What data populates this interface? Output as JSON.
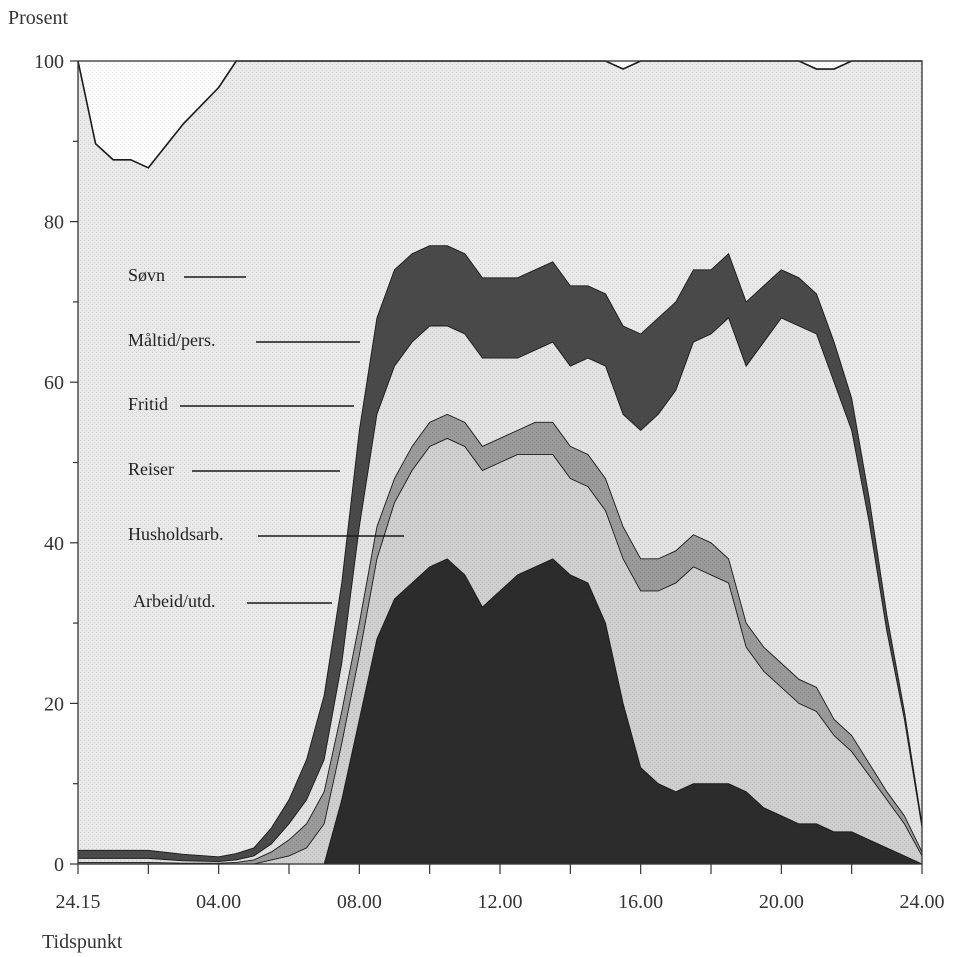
{
  "chart_data": {
    "type": "area",
    "ylabel": "Prosent",
    "xlabel": "Tidspunkt",
    "ylim": [
      0,
      100
    ],
    "y_ticks": [
      0,
      20,
      40,
      60,
      80,
      100
    ],
    "x_ticks": [
      {
        "h": 0,
        "label": "24.15"
      },
      {
        "h": 4,
        "label": "04.00"
      },
      {
        "h": 8,
        "label": "08.00"
      },
      {
        "h": 12,
        "label": "12.00"
      },
      {
        "h": 16,
        "label": "16.00"
      },
      {
        "h": 20,
        "label": "20.00"
      },
      {
        "h": 24,
        "label": "24.00"
      }
    ],
    "grid": false,
    "legend": "inside-left",
    "x_hours": [
      0,
      0.5,
      1,
      1.5,
      2,
      3,
      4,
      4.5,
      5,
      5.5,
      6,
      6.5,
      7,
      7.5,
      8,
      8.5,
      9,
      9.5,
      10,
      10.5,
      11,
      11.5,
      12,
      12.5,
      13,
      13.5,
      14,
      14.5,
      15,
      15.5,
      16,
      16.5,
      17,
      17.5,
      18,
      18.5,
      19,
      19.5,
      20,
      20.5,
      21,
      21.5,
      22,
      22.5,
      23,
      23.5,
      24
    ],
    "series": [
      {
        "name": "Arbeid/utd.",
        "color": "#2c2c2c",
        "values": [
          0,
          0,
          0,
          0,
          0,
          0,
          0,
          0,
          0,
          0,
          0,
          0,
          0,
          8,
          18,
          28,
          33,
          35,
          37,
          38,
          36,
          32,
          34,
          36,
          37,
          38,
          36,
          35,
          30,
          20,
          12,
          10,
          9,
          10,
          10,
          10,
          9,
          7,
          6,
          5,
          5,
          4,
          4,
          3,
          2,
          1,
          0
        ]
      },
      {
        "name": "Husholdsarb.",
        "color": "#cfcfcf",
        "values": [
          0,
          0,
          0,
          0,
          0,
          0,
          0,
          0,
          0,
          0.5,
          1,
          2,
          5,
          7,
          8,
          10,
          12,
          14,
          15,
          15,
          16,
          17,
          16,
          15,
          14,
          13,
          12,
          12,
          14,
          18,
          22,
          24,
          26,
          27,
          26,
          25,
          18,
          17,
          16,
          15,
          14,
          12,
          10,
          8,
          6,
          4,
          1
        ]
      },
      {
        "name": "Reiser",
        "color": "#9a9a9a",
        "values": [
          0.2,
          0.2,
          0.2,
          0.2,
          0.2,
          0.1,
          0.1,
          0.2,
          0.5,
          1,
          2,
          3,
          4,
          4,
          4,
          4,
          3,
          3,
          3,
          3,
          3,
          3,
          3,
          3,
          4,
          4,
          4,
          4,
          4,
          4,
          4,
          4,
          4,
          4,
          4,
          3,
          3,
          3,
          3,
          3,
          3,
          2,
          2,
          1.5,
          1,
          1,
          0.5
        ]
      },
      {
        "name": "Fritid",
        "color": "#e2e2e2",
        "values": [
          0.5,
          0.5,
          0.5,
          0.5,
          0.5,
          0.3,
          0.2,
          0.3,
          0.5,
          1,
          2,
          3,
          4,
          6,
          12,
          14,
          14,
          13,
          12,
          11,
          11,
          11,
          10,
          9,
          9,
          10,
          10,
          12,
          14,
          14,
          16,
          18,
          20,
          24,
          26,
          30,
          32,
          38,
          43,
          44,
          44,
          42,
          38,
          30,
          20,
          12,
          3
        ]
      },
      {
        "name": "Måltid/pers.",
        "color": "#4a4a4a",
        "values": [
          1,
          1,
          1,
          1,
          1,
          0.8,
          0.6,
          0.8,
          1,
          2,
          3,
          5,
          8,
          10,
          12,
          12,
          12,
          11,
          10,
          10,
          10,
          10,
          10,
          10,
          10,
          10,
          10,
          9,
          9,
          11,
          12,
          12,
          11,
          9,
          8,
          8,
          8,
          7,
          6,
          6,
          5,
          5,
          4,
          3,
          2,
          1,
          0.5
        ]
      },
      {
        "name": "Søvn",
        "color": "#e9e9e9",
        "values": [
          98.3,
          88,
          86,
          86,
          85,
          91,
          95.8,
          98.7,
          98,
          95.5,
          92,
          87,
          79,
          65,
          46,
          32,
          26,
          24,
          23,
          23,
          24,
          27,
          27,
          27,
          26,
          25,
          28,
          28,
          29,
          32,
          34,
          32,
          30,
          30,
          32,
          34,
          30,
          28,
          26,
          27,
          28,
          34,
          42,
          56,
          69,
          81,
          95
        ]
      }
    ]
  }
}
